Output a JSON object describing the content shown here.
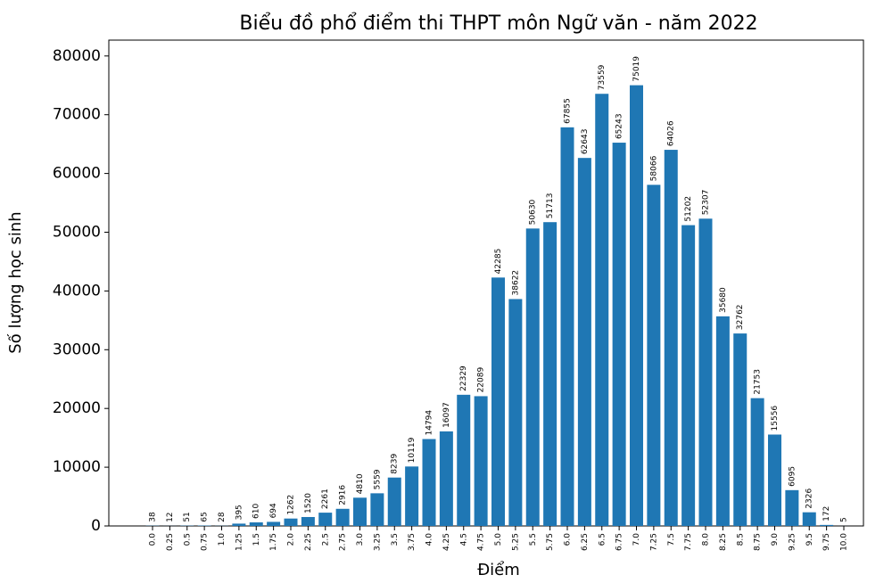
{
  "chart_data": {
    "type": "bar",
    "title": "Biểu đồ phổ điểm thi THPT môn Ngữ văn - năm 2022",
    "x_label": "Điểm",
    "y_label": "Số lượng học sinh",
    "categories": [
      "0.0",
      "0.25",
      "0.5",
      "0.75",
      "1.0",
      "1.25",
      "1.5",
      "1.75",
      "2.0",
      "2.25",
      "2.5",
      "2.75",
      "3.0",
      "3.25",
      "3.5",
      "3.75",
      "4.0",
      "4.25",
      "4.5",
      "4.75",
      "5.0",
      "5.25",
      "5.5",
      "5.75",
      "6.0",
      "6.25",
      "6.5",
      "6.75",
      "7.0",
      "7.25",
      "7.5",
      "7.75",
      "8.0",
      "8.25",
      "8.5",
      "8.75",
      "9.0",
      "9.25",
      "9.5",
      "9.75",
      "10.0"
    ],
    "values": [
      38,
      12,
      51,
      65,
      28,
      395,
      610,
      694,
      1262,
      1520,
      2261,
      2916,
      4810,
      5559,
      8239,
      10119,
      14794,
      16097,
      22329,
      22089,
      42285,
      38622,
      50630,
      51713,
      67855,
      62643,
      73559,
      65243,
      75019,
      58066,
      64026,
      51202,
      52307,
      35680,
      32762,
      21753,
      15556,
      6095,
      2326,
      172,
      5
    ],
    "color": "#1f77b4",
    "ylim": [
      0,
      82700
    ],
    "yticks": [
      0,
      10000,
      20000,
      30000,
      40000,
      50000,
      60000,
      70000,
      80000
    ],
    "grid": false
  }
}
